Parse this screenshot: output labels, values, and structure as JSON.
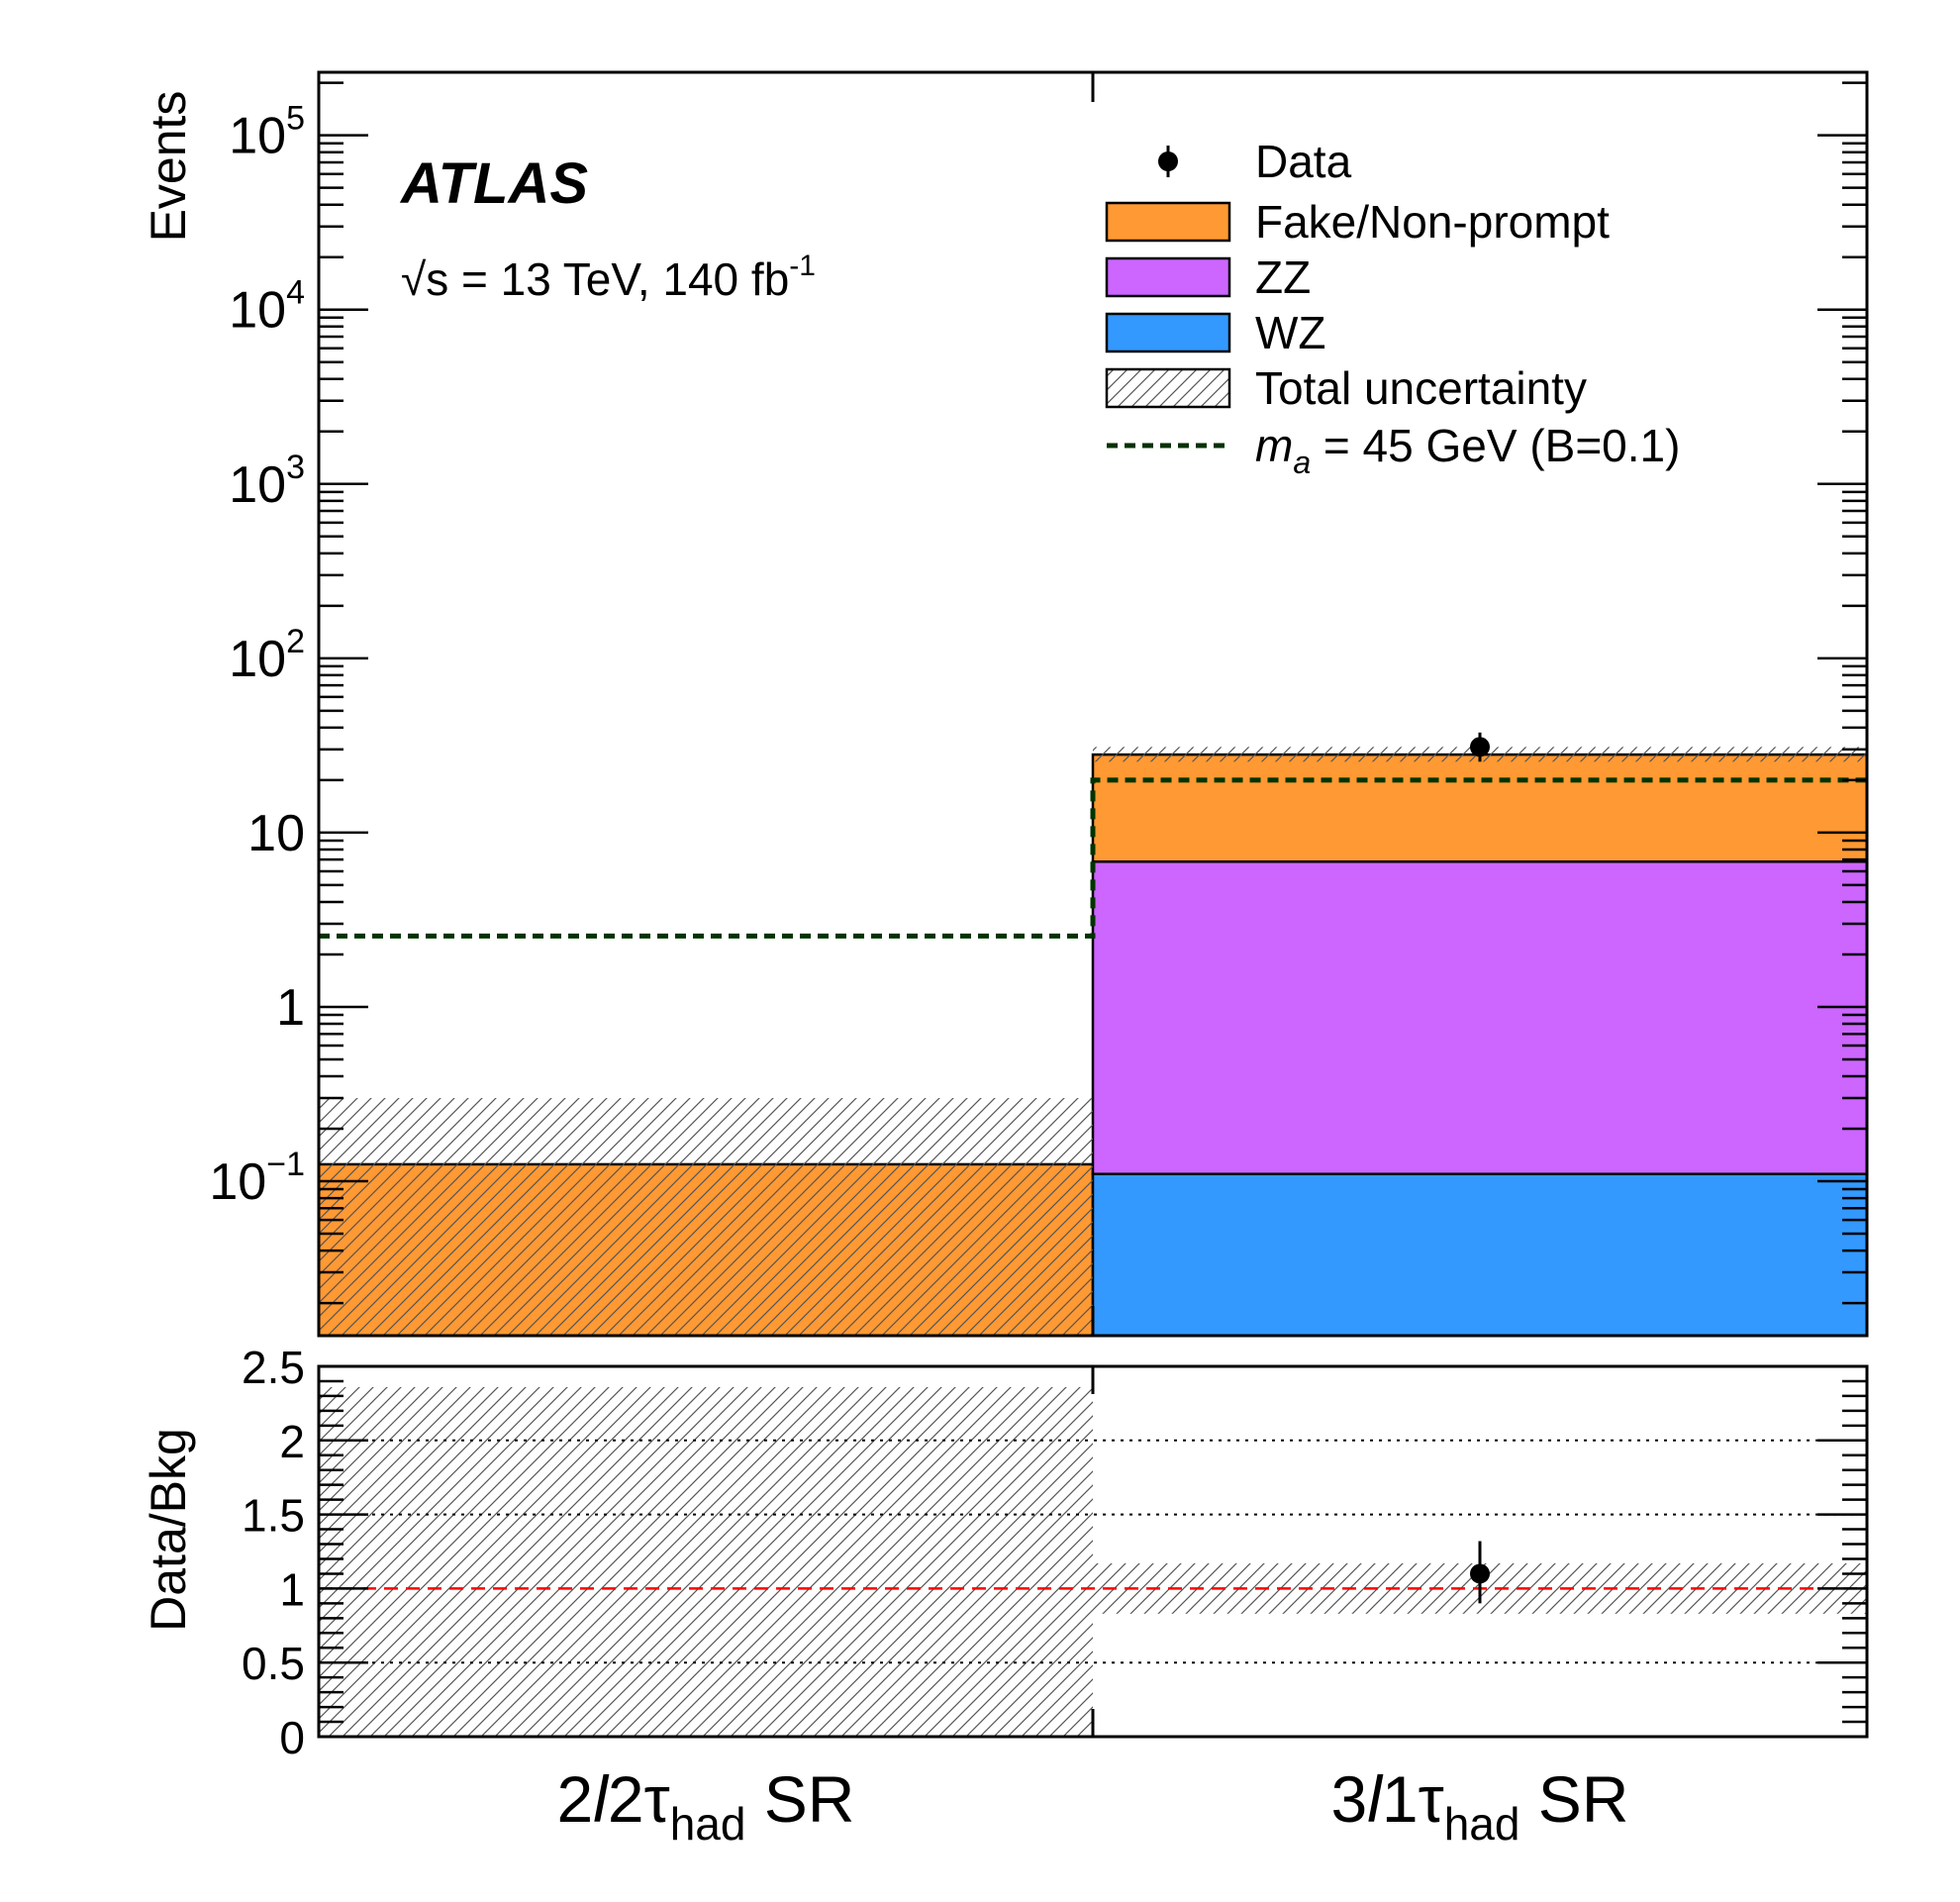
{
  "chart_data": [
    {
      "type": "bar",
      "stacked": true,
      "panel": "main",
      "experiment": "ATLAS",
      "energy_label": "√s = 13 TeV, 140 fb",
      "energy_label_sup": "-1",
      "ylabel": "Events",
      "yscale": "log",
      "ylim": [
        0.013,
        230000
      ],
      "yticks": [
        {
          "value": 100000,
          "base": "10",
          "exp": "5"
        },
        {
          "value": 10000,
          "base": "10",
          "exp": "4"
        },
        {
          "value": 1000,
          "base": "10",
          "exp": "3"
        },
        {
          "value": 100,
          "base": "10",
          "exp": "2"
        },
        {
          "value": 10,
          "base": "10",
          "exp": ""
        },
        {
          "value": 1,
          "base": "1",
          "exp": ""
        },
        {
          "value": 0.1,
          "base": "10",
          "exp": "−1"
        }
      ],
      "categories": [
        {
          "main": "2",
          "ital": "l",
          "mid": "2τ",
          "sub": "had",
          "tail": " SR"
        },
        {
          "main": "3",
          "ital": "l",
          "mid": "1τ",
          "sub": "had",
          "tail": " SR"
        }
      ],
      "series": [
        {
          "name": "WZ",
          "color": "#3399ff",
          "values": [
            0,
            0.11
          ]
        },
        {
          "name": "ZZ",
          "color": "#cc66ff",
          "values": [
            0,
            6.7
          ]
        },
        {
          "name": "Fake/Non-prompt",
          "color": "#ff9933",
          "values": [
            0.125,
            21.2
          ]
        }
      ],
      "total_uncertainty": {
        "label": "Total uncertainty",
        "low": [
          0.013,
          25.5
        ],
        "high": [
          0.3,
          31.0
        ]
      },
      "data": {
        "label": "Data",
        "values": [
          null,
          31
        ],
        "err_low": [
          null,
          5.5
        ],
        "err_high": [
          null,
          6.5
        ]
      },
      "signal": {
        "name_base": "m",
        "name_sub": "a",
        "name_rest": " = 45 GeV (B=0.1)",
        "color": "#003300",
        "values": [
          2.55,
          20.0
        ]
      },
      "legend_position": "top-right"
    },
    {
      "type": "bar",
      "panel": "ratio",
      "ylabel": "Data/Bkg",
      "ylim": [
        0,
        2.5
      ],
      "yticks": [
        "0",
        "0.5",
        "1",
        "1.5",
        "2",
        "2.5"
      ],
      "grid_lines": [
        0.5,
        1.5,
        2.0
      ],
      "reference_line": {
        "value": 1.0,
        "color": "#ff0000"
      },
      "uncertainty_band": {
        "low": [
          0,
          0.83
        ],
        "high": [
          2.36,
          1.17
        ]
      },
      "data_ratio": {
        "values": [
          null,
          1.1
        ],
        "err_low": [
          null,
          0.2
        ],
        "err_high": [
          null,
          0.22
        ]
      }
    }
  ]
}
